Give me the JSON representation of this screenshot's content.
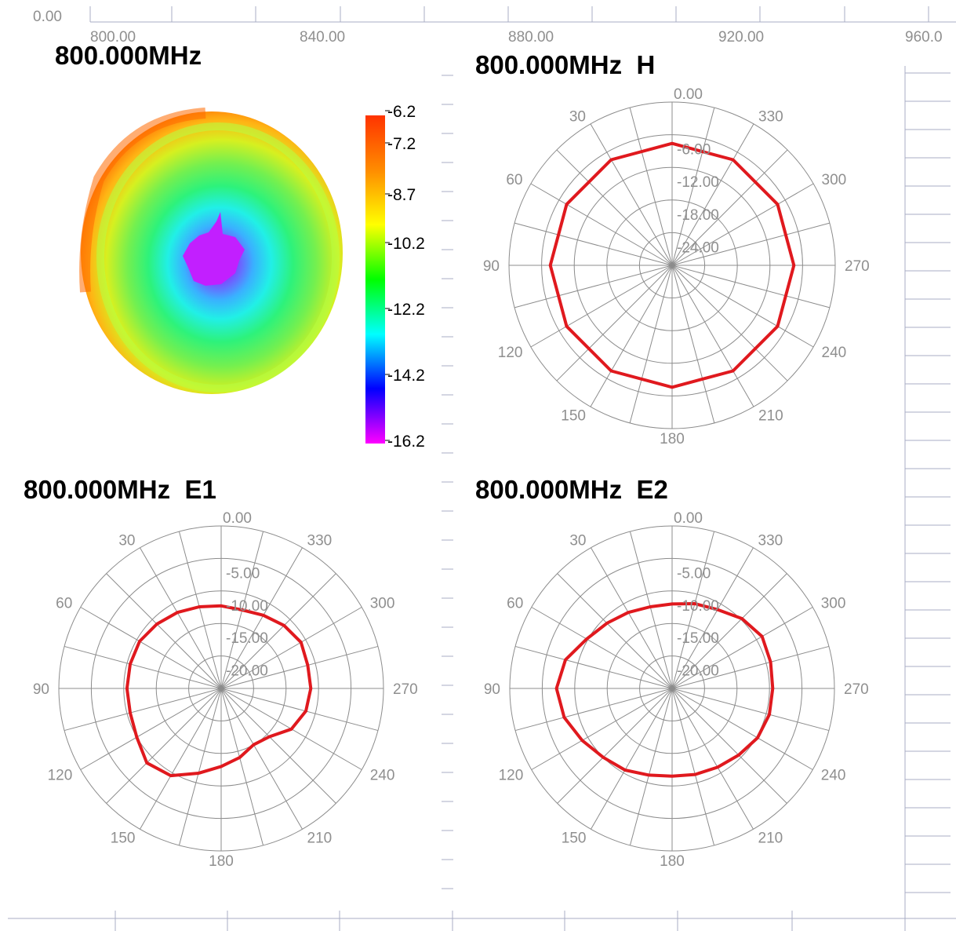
{
  "top_axis": {
    "y_label": "0.00",
    "x_ticks": [
      "800.00",
      "840.00",
      "880.00",
      "920.00",
      "960.0"
    ]
  },
  "panels": {
    "surface": {
      "title": "800.000MHz"
    },
    "h": {
      "title": "800.000MHz  H"
    },
    "e1": {
      "title": "800.000MHz  E1"
    },
    "e2": {
      "title": "800.000MHz  E2"
    }
  },
  "colorbar": {
    "labels": [
      "-6.2",
      "-7.2",
      "-8.7",
      "-10.2",
      "-12.2",
      "-14.2",
      "-16.2"
    ],
    "stops": [
      "#ff3300",
      "#ff8c00",
      "#ffff00",
      "#00ff00",
      "#00ffff",
      "#0000ff",
      "#ff00ff"
    ]
  },
  "colors": {
    "trace": "#e0191e",
    "grid": "#8c8c8c",
    "tick_label": "#8f8f8f"
  },
  "chart_data": [
    {
      "type": "polar",
      "title": "800.000MHz  H",
      "angle_labels": [
        "0.00",
        "30",
        "60",
        "90",
        "120",
        "150",
        "180",
        "210",
        "240",
        "270",
        "300",
        "330"
      ],
      "radial_labels": [
        "0.00",
        "-6.00",
        "-12.00",
        "-18.00",
        "-24.00"
      ],
      "rlim": [
        -30,
        0
      ],
      "series": [
        {
          "theta": [
            0,
            30,
            60,
            90,
            120,
            150,
            180,
            210,
            240,
            270,
            300,
            330,
            360
          ],
          "r": [
            -7.6,
            -7.6,
            -7.6,
            -7.6,
            -7.6,
            -7.6,
            -7.6,
            -7.6,
            -7.6,
            -7.6,
            -7.6,
            -7.6,
            -7.6
          ]
        }
      ]
    },
    {
      "type": "polar",
      "title": "800.000MHz  E1",
      "angle_labels": [
        "0.00",
        "30",
        "60",
        "90",
        "120",
        "150",
        "180",
        "210",
        "240",
        "270",
        "300",
        "330"
      ],
      "radial_labels": [
        "0.00",
        "-5.00",
        "-10.00",
        "-15.00",
        "-20.00"
      ],
      "rlim": [
        -25,
        0
      ],
      "series": [
        {
          "theta": [
            0,
            15,
            30,
            45,
            60,
            75,
            90,
            105,
            120,
            135,
            150,
            165,
            180,
            195,
            210,
            225,
            240,
            255,
            270,
            285,
            300,
            315,
            330,
            345,
            360
          ],
          "r": [
            -12.3,
            -12.0,
            -11.5,
            -11.0,
            -10.5,
            -10.5,
            -10.5,
            -10.5,
            -10.0,
            -8.8,
            -9.5,
            -11.5,
            -13.0,
            -14.0,
            -15.0,
            -14.5,
            -12.5,
            -11.5,
            -11.2,
            -11.2,
            -10.8,
            -11.3,
            -12.0,
            -12.5,
            -12.3
          ]
        }
      ]
    },
    {
      "type": "polar",
      "title": "800.000MHz  E2",
      "angle_labels": [
        "0.00",
        "30",
        "60",
        "90",
        "120",
        "150",
        "180",
        "210",
        "240",
        "270",
        "300",
        "330"
      ],
      "radial_labels": [
        "0.00",
        "-5.00",
        "-10.00",
        "-15.00",
        "-20.00"
      ],
      "rlim": [
        -25,
        0
      ],
      "series": [
        {
          "theta": [
            0,
            15,
            30,
            45,
            60,
            75,
            90,
            105,
            120,
            135,
            150,
            165,
            180,
            195,
            210,
            225,
            240,
            255,
            270,
            285,
            300,
            315,
            330,
            345,
            360
          ],
          "r": [
            -12.0,
            -12.0,
            -11.5,
            -10.8,
            -9.8,
            -8.0,
            -7.2,
            -7.8,
            -9.0,
            -10.0,
            -10.5,
            -11.2,
            -11.5,
            -11.3,
            -11.0,
            -10.5,
            -9.8,
            -9.5,
            -9.5,
            -9.3,
            -9.0,
            -9.8,
            -11.0,
            -11.5,
            -12.0
          ]
        }
      ]
    }
  ]
}
